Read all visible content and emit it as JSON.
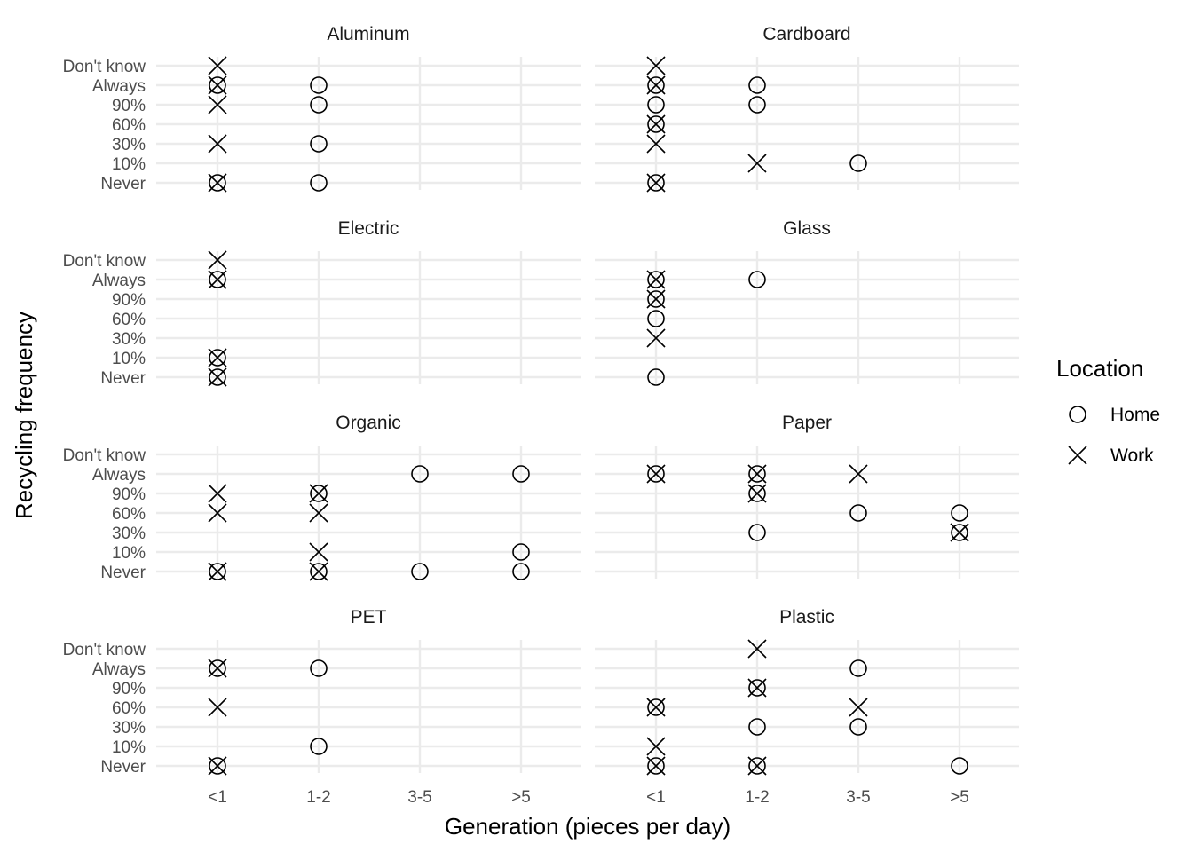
{
  "chart_data": {
    "type": "scatter",
    "facet_by": "material",
    "xlabel": "Generation (pieces per day)",
    "ylabel": "Recycling frequency",
    "x_categories": [
      "<1",
      "1-2",
      "3-5",
      ">5"
    ],
    "y_categories": [
      "Never",
      "10%",
      "30%",
      "60%",
      "90%",
      "Always",
      "Don't know"
    ],
    "legend": {
      "title": "Location",
      "position": "right",
      "entries": [
        {
          "name": "Home",
          "shape": "circle"
        },
        {
          "name": "Work",
          "shape": "cross"
        }
      ]
    },
    "grid": true,
    "panels": [
      {
        "title": "Aluminum",
        "series": [
          {
            "name": "Home",
            "points": [
              [
                "<1",
                "Always"
              ],
              [
                "<1",
                "Never"
              ],
              [
                "1-2",
                "Always"
              ],
              [
                "1-2",
                "90%"
              ],
              [
                "1-2",
                "30%"
              ],
              [
                "1-2",
                "Never"
              ]
            ]
          },
          {
            "name": "Work",
            "points": [
              [
                "<1",
                "Don't know"
              ],
              [
                "<1",
                "Always"
              ],
              [
                "<1",
                "90%"
              ],
              [
                "<1",
                "30%"
              ],
              [
                "<1",
                "Never"
              ]
            ]
          }
        ]
      },
      {
        "title": "Cardboard",
        "series": [
          {
            "name": "Home",
            "points": [
              [
                "<1",
                "Always"
              ],
              [
                "<1",
                "90%"
              ],
              [
                "<1",
                "60%"
              ],
              [
                "<1",
                "Never"
              ],
              [
                "1-2",
                "Always"
              ],
              [
                "1-2",
                "90%"
              ],
              [
                "3-5",
                "10%"
              ]
            ]
          },
          {
            "name": "Work",
            "points": [
              [
                "<1",
                "Don't know"
              ],
              [
                "<1",
                "Always"
              ],
              [
                "<1",
                "60%"
              ],
              [
                "<1",
                "30%"
              ],
              [
                "<1",
                "Never"
              ],
              [
                "1-2",
                "10%"
              ]
            ]
          }
        ]
      },
      {
        "title": "Electric",
        "series": [
          {
            "name": "Home",
            "points": [
              [
                "<1",
                "Always"
              ],
              [
                "<1",
                "10%"
              ],
              [
                "<1",
                "Never"
              ]
            ]
          },
          {
            "name": "Work",
            "points": [
              [
                "<1",
                "Don't know"
              ],
              [
                "<1",
                "Always"
              ],
              [
                "<1",
                "10%"
              ],
              [
                "<1",
                "Never"
              ]
            ]
          }
        ]
      },
      {
        "title": "Glass",
        "series": [
          {
            "name": "Home",
            "points": [
              [
                "<1",
                "Always"
              ],
              [
                "<1",
                "90%"
              ],
              [
                "<1",
                "60%"
              ],
              [
                "<1",
                "Never"
              ],
              [
                "1-2",
                "Always"
              ]
            ]
          },
          {
            "name": "Work",
            "points": [
              [
                "<1",
                "Always"
              ],
              [
                "<1",
                "90%"
              ],
              [
                "<1",
                "30%"
              ]
            ]
          }
        ]
      },
      {
        "title": "Organic",
        "series": [
          {
            "name": "Home",
            "points": [
              [
                "<1",
                "Never"
              ],
              [
                "1-2",
                "90%"
              ],
              [
                "1-2",
                "Never"
              ],
              [
                "3-5",
                "Always"
              ],
              [
                "3-5",
                "Never"
              ],
              [
                ">5",
                "Always"
              ],
              [
                ">5",
                "10%"
              ],
              [
                ">5",
                "Never"
              ]
            ]
          },
          {
            "name": "Work",
            "points": [
              [
                "<1",
                "90%"
              ],
              [
                "<1",
                "60%"
              ],
              [
                "<1",
                "Never"
              ],
              [
                "1-2",
                "90%"
              ],
              [
                "1-2",
                "60%"
              ],
              [
                "1-2",
                "10%"
              ],
              [
                "1-2",
                "Never"
              ]
            ]
          }
        ]
      },
      {
        "title": "Paper",
        "series": [
          {
            "name": "Home",
            "points": [
              [
                "<1",
                "Always"
              ],
              [
                "1-2",
                "Always"
              ],
              [
                "1-2",
                "90%"
              ],
              [
                "1-2",
                "30%"
              ],
              [
                "3-5",
                "60%"
              ],
              [
                ">5",
                "60%"
              ],
              [
                ">5",
                "30%"
              ]
            ]
          },
          {
            "name": "Work",
            "points": [
              [
                "<1",
                "Always"
              ],
              [
                "1-2",
                "Always"
              ],
              [
                "1-2",
                "90%"
              ],
              [
                "3-5",
                "Always"
              ],
              [
                ">5",
                "30%"
              ]
            ]
          }
        ]
      },
      {
        "title": "PET",
        "series": [
          {
            "name": "Home",
            "points": [
              [
                "<1",
                "Always"
              ],
              [
                "<1",
                "Never"
              ],
              [
                "1-2",
                "Always"
              ],
              [
                "1-2",
                "10%"
              ]
            ]
          },
          {
            "name": "Work",
            "points": [
              [
                "<1",
                "Always"
              ],
              [
                "<1",
                "60%"
              ],
              [
                "<1",
                "Never"
              ]
            ]
          }
        ]
      },
      {
        "title": "Plastic",
        "series": [
          {
            "name": "Home",
            "points": [
              [
                "<1",
                "60%"
              ],
              [
                "<1",
                "Never"
              ],
              [
                "1-2",
                "90%"
              ],
              [
                "1-2",
                "30%"
              ],
              [
                "1-2",
                "Never"
              ],
              [
                "3-5",
                "Always"
              ],
              [
                "3-5",
                "30%"
              ],
              [
                ">5",
                "Never"
              ]
            ]
          },
          {
            "name": "Work",
            "points": [
              [
                "<1",
                "60%"
              ],
              [
                "<1",
                "10%"
              ],
              [
                "<1",
                "Never"
              ],
              [
                "1-2",
                "Don't know"
              ],
              [
                "1-2",
                "90%"
              ],
              [
                "1-2",
                "Never"
              ],
              [
                "3-5",
                "60%"
              ]
            ]
          }
        ]
      }
    ]
  }
}
